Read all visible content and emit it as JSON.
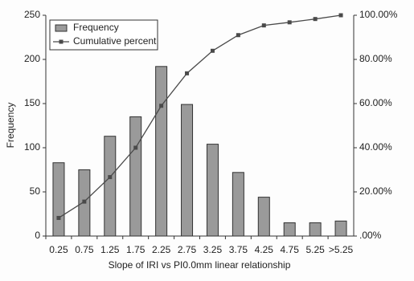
{
  "chart_data": {
    "type": "bar",
    "x_label": "Slope of IRI vs PI0.0mm linear relationship",
    "y_label": "Frequency",
    "categories": [
      "0.25",
      "0.75",
      "1.25",
      "1.75",
      "2.25",
      "2.75",
      "3.25",
      "3.75",
      "4.25",
      "4.75",
      "5.25",
      ">5.25"
    ],
    "series": [
      {
        "name": "Frequency",
        "color": "#9a9a9a",
        "values": [
          83,
          75,
          113,
          135,
          192,
          149,
          104,
          72,
          44,
          15,
          15,
          17
        ]
      },
      {
        "name": "Cumulative percent",
        "color": "#4a4a4a",
        "type": "line",
        "axis": "y2",
        "values": [
          8.2,
          15.6,
          26.7,
          40.0,
          59.0,
          73.7,
          83.9,
          91.0,
          95.4,
          96.8,
          98.3,
          100
        ]
      }
    ],
    "ylim": [
      0,
      250
    ],
    "yticks": [
      0,
      50,
      100,
      150,
      200,
      250
    ],
    "y2lim": [
      0,
      100
    ],
    "y2ticks": [
      {
        "value": 0,
        "label": ".00%"
      },
      {
        "value": 20,
        "label": "20.00%"
      },
      {
        "value": 40,
        "label": "40.00%"
      },
      {
        "value": 60,
        "label": "60.00%"
      },
      {
        "value": 80,
        "label": "80.00%"
      },
      {
        "value": 100,
        "label": "100.00%"
      }
    ],
    "legend": "top-left"
  }
}
